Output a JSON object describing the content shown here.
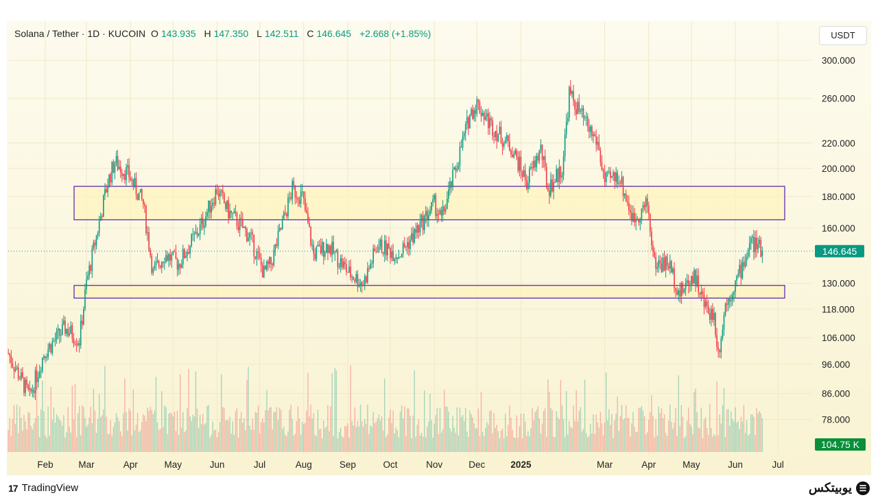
{
  "header": {
    "symbol": "Solana / Tether · 1D · KUCOIN",
    "open_label": "O",
    "open": "143.935",
    "high_label": "H",
    "high": "147.350",
    "low_label": "L",
    "low": "142.511",
    "close_label": "C",
    "close": "146.645",
    "change": "+2.668 (+1.85%)"
  },
  "currency_button": "USDT",
  "footer": {
    "brand": "TradingView",
    "watermark": "یوبیتکس"
  },
  "colors": {
    "up": "#089981",
    "down": "#f23645",
    "box": "#5b2bb5",
    "box_fill": "#fff3b8"
  },
  "chart_data": {
    "type": "candlestick",
    "title": "Solana / Tether · 1D · KUCOIN",
    "scale": "log",
    "ylim": [
      70,
      320
    ],
    "y_ticks": [
      "300.000",
      "260.000",
      "220.000",
      "200.000",
      "180.000",
      "160.000",
      "130.000",
      "118.000",
      "106.000",
      "96.000",
      "86.000",
      "78.000"
    ],
    "y_tick_values": [
      300,
      260,
      220,
      200,
      180,
      160,
      130,
      118,
      106,
      96,
      86,
      78
    ],
    "x_ticks": [
      "Feb",
      "Mar",
      "Apr",
      "May",
      "Jun",
      "Jul",
      "Aug",
      "Sep",
      "Oct",
      "Nov",
      "Dec",
      "2025",
      "Mar",
      "Apr",
      "May",
      "Jun",
      "Jul"
    ],
    "x_tick_days": [
      31,
      60,
      91,
      121,
      152,
      182,
      213,
      244,
      274,
      305,
      335,
      366,
      425,
      456,
      486,
      517,
      547
    ],
    "price_path_anchors_day_price": [
      [
        5,
        100
      ],
      [
        20,
        85
      ],
      [
        30,
        100
      ],
      [
        45,
        110
      ],
      [
        55,
        105
      ],
      [
        60,
        130
      ],
      [
        75,
        190
      ],
      [
        80,
        205
      ],
      [
        90,
        195
      ],
      [
        100,
        175
      ],
      [
        107,
        135
      ],
      [
        115,
        145
      ],
      [
        125,
        140
      ],
      [
        140,
        160
      ],
      [
        152,
        185
      ],
      [
        160,
        170
      ],
      [
        175,
        155
      ],
      [
        185,
        135
      ],
      [
        190,
        140
      ],
      [
        205,
        185
      ],
      [
        212,
        180
      ],
      [
        220,
        145
      ],
      [
        230,
        150
      ],
      [
        245,
        135
      ],
      [
        255,
        130
      ],
      [
        265,
        150
      ],
      [
        280,
        145
      ],
      [
        290,
        155
      ],
      [
        305,
        175
      ],
      [
        310,
        165
      ],
      [
        320,
        200
      ],
      [
        330,
        245
      ],
      [
        335,
        255
      ],
      [
        345,
        235
      ],
      [
        360,
        215
      ],
      [
        370,
        190
      ],
      [
        380,
        215
      ],
      [
        385,
        185
      ],
      [
        395,
        200
      ],
      [
        400,
        265
      ],
      [
        410,
        240
      ],
      [
        420,
        220
      ],
      [
        425,
        190
      ],
      [
        435,
        195
      ],
      [
        445,
        165
      ],
      [
        455,
        175
      ],
      [
        460,
        140
      ],
      [
        470,
        140
      ],
      [
        478,
        125
      ],
      [
        488,
        135
      ],
      [
        495,
        120
      ],
      [
        502,
        115
      ],
      [
        505,
        100
      ],
      [
        510,
        120
      ],
      [
        520,
        135
      ],
      [
        528,
        152
      ],
      [
        536,
        147
      ]
    ],
    "zones": [
      {
        "name": "resistance zone",
        "low": 165,
        "high": 187
      },
      {
        "name": "support zone",
        "low": 123,
        "high": 129
      }
    ],
    "last_price": "146.645",
    "last_volume": "104.75 K"
  }
}
